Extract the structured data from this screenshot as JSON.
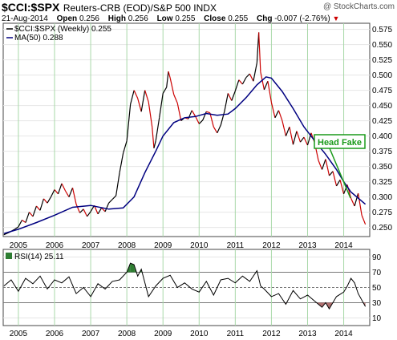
{
  "header": {
    "symbol": "$CCI:$SPX",
    "description": "Reuters-CRB (EOD)/S&P 500 INDX",
    "credit": "@ StockCharts.com",
    "date": "21-Aug-2014",
    "open_label": "Open",
    "open": "0.256",
    "high_label": "High",
    "high": "0.256",
    "low_label": "Low",
    "low": "0.255",
    "close_label": "Close",
    "close": "0.255",
    "chg_label": "Chg",
    "chg": "-0.007 (-2.76%)"
  },
  "colors": {
    "price_up": "#000000",
    "price_down": "#cc0000",
    "ma": "#000080",
    "annotation": "#1a9a1a",
    "grid_v": "#a8d8a8",
    "grid_h": "#e6e6e6",
    "rsi_ob_fill": "#2e7d32",
    "rsi_os_fill": "#b07070"
  },
  "chart_data": [
    {
      "type": "line",
      "title": "$CCI:$SPX",
      "legend": [
        {
          "label": "$CCI:$SPX (Weekly) 0.255",
          "color": "#000000"
        },
        {
          "label": "MA(50) 0.288",
          "color": "#000080"
        }
      ],
      "legend_position": "top-left",
      "x_ticks": [
        "2005",
        "2006",
        "2007",
        "2008",
        "2009",
        "2010",
        "2011",
        "2012",
        "2013",
        "2014"
      ],
      "y_ticks": [
        "0.575",
        "0.550",
        "0.525",
        "0.500",
        "0.475",
        "0.450",
        "0.425",
        "0.400",
        "0.375",
        "0.350",
        "0.325",
        "0.300",
        "0.275",
        "0.250"
      ],
      "ylim": [
        0.235,
        0.585
      ],
      "grid": true,
      "annotation": "Head Fake",
      "series": [
        {
          "name": "$CCI:$SPX (Weekly)",
          "x": [
            2004.6,
            2004.75,
            2004.9,
            2005.0,
            2005.1,
            2005.2,
            2005.3,
            2005.4,
            2005.5,
            2005.6,
            2005.7,
            2005.8,
            2005.9,
            2006.0,
            2006.1,
            2006.2,
            2006.3,
            2006.4,
            2006.5,
            2006.6,
            2006.7,
            2006.8,
            2006.9,
            2007.0,
            2007.1,
            2007.2,
            2007.3,
            2007.4,
            2007.5,
            2007.6,
            2007.7,
            2007.8,
            2007.9,
            2008.0,
            2008.1,
            2008.2,
            2008.3,
            2008.4,
            2008.5,
            2008.6,
            2008.7,
            2008.75,
            2008.8,
            2008.9,
            2009.0,
            2009.1,
            2009.15,
            2009.2,
            2009.3,
            2009.4,
            2009.5,
            2009.6,
            2009.7,
            2009.8,
            2009.9,
            2010.0,
            2010.1,
            2010.2,
            2010.3,
            2010.4,
            2010.5,
            2010.6,
            2010.7,
            2010.8,
            2010.9,
            2011.0,
            2011.1,
            2011.2,
            2011.3,
            2011.4,
            2011.5,
            2011.6,
            2011.65,
            2011.7,
            2011.8,
            2011.9,
            2012.0,
            2012.1,
            2012.2,
            2012.3,
            2012.4,
            2012.5,
            2012.6,
            2012.7,
            2012.8,
            2012.9,
            2013.0,
            2013.1,
            2013.2,
            2013.3,
            2013.4,
            2013.5,
            2013.6,
            2013.7,
            2013.8,
            2013.9,
            2014.0,
            2014.1,
            2014.2,
            2014.3,
            2014.4,
            2014.5,
            2014.6
          ],
          "y": [
            0.238,
            0.242,
            0.247,
            0.251,
            0.262,
            0.258,
            0.275,
            0.268,
            0.285,
            0.278,
            0.297,
            0.29,
            0.3,
            0.312,
            0.305,
            0.322,
            0.31,
            0.3,
            0.315,
            0.288,
            0.274,
            0.28,
            0.268,
            0.276,
            0.286,
            0.272,
            0.282,
            0.276,
            0.29,
            0.296,
            0.302,
            0.34,
            0.372,
            0.392,
            0.452,
            0.475,
            0.462,
            0.44,
            0.475,
            0.456,
            0.415,
            0.38,
            0.392,
            0.43,
            0.47,
            0.48,
            0.506,
            0.495,
            0.468,
            0.454,
            0.425,
            0.43,
            0.428,
            0.442,
            0.432,
            0.42,
            0.426,
            0.44,
            0.438,
            0.415,
            0.405,
            0.418,
            0.44,
            0.47,
            0.458,
            0.474,
            0.492,
            0.485,
            0.496,
            0.502,
            0.49,
            0.52,
            0.57,
            0.505,
            0.476,
            0.49,
            0.455,
            0.43,
            0.442,
            0.425,
            0.4,
            0.415,
            0.386,
            0.408,
            0.39,
            0.398,
            0.385,
            0.405,
            0.388,
            0.36,
            0.345,
            0.362,
            0.335,
            0.342,
            0.318,
            0.328,
            0.305,
            0.32,
            0.298,
            0.285,
            0.306,
            0.27,
            0.255
          ]
        },
        {
          "name": "MA(50)",
          "x": [
            2004.6,
            2005.0,
            2005.5,
            2006.0,
            2006.5,
            2007.0,
            2007.5,
            2007.9,
            2008.2,
            2008.5,
            2008.8,
            2009.0,
            2009.3,
            2009.6,
            2009.9,
            2010.2,
            2010.5,
            2010.8,
            2011.0,
            2011.3,
            2011.6,
            2011.85,
            2012.0,
            2012.3,
            2012.6,
            2012.9,
            2013.2,
            2013.5,
            2013.8,
            2014.0,
            2014.2,
            2014.4,
            2014.6
          ],
          "y": [
            0.24,
            0.247,
            0.258,
            0.27,
            0.283,
            0.286,
            0.28,
            0.282,
            0.3,
            0.34,
            0.375,
            0.4,
            0.422,
            0.43,
            0.432,
            0.437,
            0.434,
            0.436,
            0.445,
            0.463,
            0.484,
            0.497,
            0.495,
            0.473,
            0.445,
            0.415,
            0.392,
            0.37,
            0.345,
            0.325,
            0.308,
            0.298,
            0.288
          ]
        }
      ]
    },
    {
      "type": "line",
      "title": "RSI(14)",
      "legend": [
        {
          "label": "RSI(14) 25.11",
          "color": "#000000"
        }
      ],
      "x_ticks": [
        "2005",
        "2006",
        "2007",
        "2008",
        "2009",
        "2010",
        "2011",
        "2012",
        "2013",
        "2014"
      ],
      "y_ticks": [
        "90",
        "70",
        "50",
        "30",
        "10"
      ],
      "ylim": [
        0,
        100
      ],
      "series": [
        {
          "name": "RSI(14)",
          "x": [
            2004.6,
            2004.8,
            2005.0,
            2005.2,
            2005.4,
            2005.6,
            2005.8,
            2006.0,
            2006.2,
            2006.4,
            2006.6,
            2006.8,
            2007.0,
            2007.2,
            2007.4,
            2007.6,
            2007.8,
            2008.0,
            2008.1,
            2008.2,
            2008.3,
            2008.4,
            2008.6,
            2008.8,
            2009.0,
            2009.2,
            2009.4,
            2009.6,
            2009.8,
            2010.0,
            2010.2,
            2010.4,
            2010.6,
            2010.8,
            2011.0,
            2011.2,
            2011.4,
            2011.6,
            2011.7,
            2011.8,
            2012.0,
            2012.2,
            2012.4,
            2012.6,
            2012.8,
            2013.0,
            2013.2,
            2013.4,
            2013.5,
            2013.6,
            2013.8,
            2014.0,
            2014.1,
            2014.2,
            2014.3,
            2014.4,
            2014.6
          ],
          "y": [
            52,
            60,
            45,
            62,
            55,
            65,
            48,
            60,
            56,
            64,
            42,
            50,
            38,
            55,
            48,
            58,
            60,
            70,
            82,
            80,
            65,
            74,
            38,
            52,
            62,
            66,
            50,
            56,
            48,
            44,
            58,
            40,
            60,
            62,
            56,
            65,
            58,
            72,
            52,
            48,
            38,
            42,
            28,
            46,
            35,
            40,
            32,
            24,
            30,
            22,
            38,
            44,
            52,
            62,
            56,
            42,
            25
          ]
        }
      ]
    }
  ]
}
